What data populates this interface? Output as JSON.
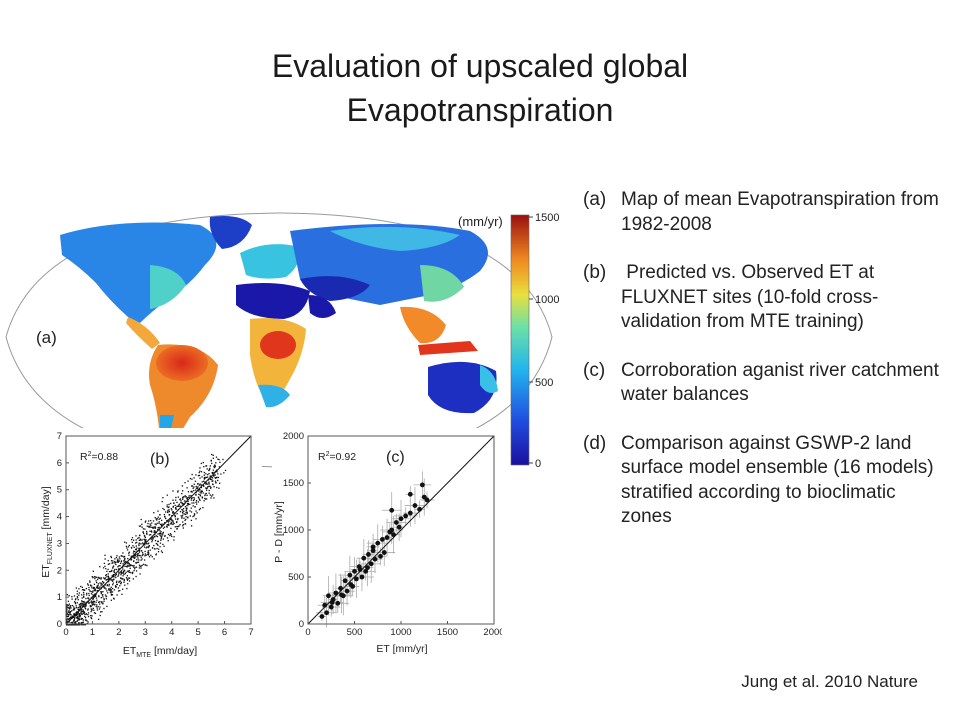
{
  "slide": {
    "title_line1": "Evaluation of upscaled global",
    "title_line2": "Evapotranspiration"
  },
  "map": {
    "panel_label": "(a)",
    "unit": "(mm/yr)",
    "colorbar_ticks": [
      "1500",
      "1000",
      "500",
      "0"
    ],
    "colors": {
      "ocean": "#ffffff",
      "low": "#1a3fd0",
      "mid": "#2fb5e8",
      "high": "#e03a1c"
    }
  },
  "panel_b": {
    "label": "(b)",
    "r2_base": "R",
    "r2_sup": "2",
    "r2_val": "=0.88",
    "x_ticks": [
      "0",
      "1",
      "2",
      "3",
      "4",
      "5",
      "6",
      "7"
    ],
    "y_ticks": [
      "0",
      "1",
      "2",
      "3",
      "4",
      "5",
      "6",
      "7"
    ],
    "xlabel_base": "ET",
    "xlabel_sub": "MTE",
    "xlabel_unit": " [mm/day]",
    "ylabel_base": "ET",
    "ylabel_sub": "FLUXNET",
    "ylabel_unit": " [mm/day]"
  },
  "panel_c": {
    "label": "(c)",
    "r2_base": "R",
    "r2_sup": "2",
    "r2_val": "=0.92",
    "x_ticks": [
      "0",
      "500",
      "1000",
      "1500",
      "2000"
    ],
    "y_ticks": [
      "0",
      "500",
      "1000",
      "1500",
      "2000"
    ],
    "xlabel": "ET [mm/yr]",
    "ylabel": "P - D [mm/yr]"
  },
  "chart_data": [
    {
      "type": "scatter",
      "title": "(b)",
      "xlabel": "ET MTE [mm/day]",
      "ylabel": "ET FLUXNET [mm/day]",
      "xlim": [
        0,
        7
      ],
      "ylim": [
        0,
        7
      ],
      "annotation": "R2=0.88",
      "reference_line": "1:1",
      "note": "dense cloud of several thousand site-day points clustered along the 1:1 line"
    },
    {
      "type": "scatter",
      "title": "(c)",
      "xlabel": "ET [mm/yr]",
      "ylabel": "P - D [mm/yr]",
      "xlim": [
        0,
        2000
      ],
      "ylim": [
        0,
        2000
      ],
      "annotation": "R2=0.92",
      "reference_line": "1:1",
      "x": [
        150,
        180,
        200,
        220,
        250,
        270,
        300,
        320,
        350,
        380,
        400,
        420,
        450,
        480,
        500,
        520,
        550,
        580,
        600,
        620,
        650,
        680,
        700,
        720,
        750,
        780,
        800,
        850,
        880,
        900,
        920,
        950,
        980,
        1000,
        1050,
        1100,
        1150,
        1200,
        1230,
        1250,
        1280,
        820,
        640,
        560,
        460,
        360,
        260,
        700,
        900,
        1100
      ],
      "y": [
        80,
        200,
        120,
        300,
        180,
        260,
        330,
        220,
        380,
        300,
        460,
        350,
        520,
        400,
        560,
        480,
        610,
        500,
        700,
        560,
        740,
        640,
        780,
        690,
        860,
        720,
        900,
        920,
        980,
        1000,
        950,
        1080,
        1030,
        1120,
        1150,
        1180,
        1260,
        1220,
        1480,
        1350,
        1320,
        760,
        600,
        580,
        420,
        310,
        230,
        820,
        1210,
        1380
      ]
    }
  ],
  "captions": [
    {
      "label": "(a)",
      "text": "Map of mean Evapotranspiration from 1982-2008"
    },
    {
      "label": "(b)",
      "text": " Predicted vs. Observed ET at FLUXNET sites (10-fold cross-validation from MTE training)"
    },
    {
      "label": "(c)",
      "text": "Corroboration aganist river catchment water balances"
    },
    {
      "label": "(d)",
      "text": "Comparison against GSWP-2 land surface model ensemble (16 models) stratified according to bioclimatic zones"
    }
  ],
  "citation": "Jung et al. 2010 Nature"
}
